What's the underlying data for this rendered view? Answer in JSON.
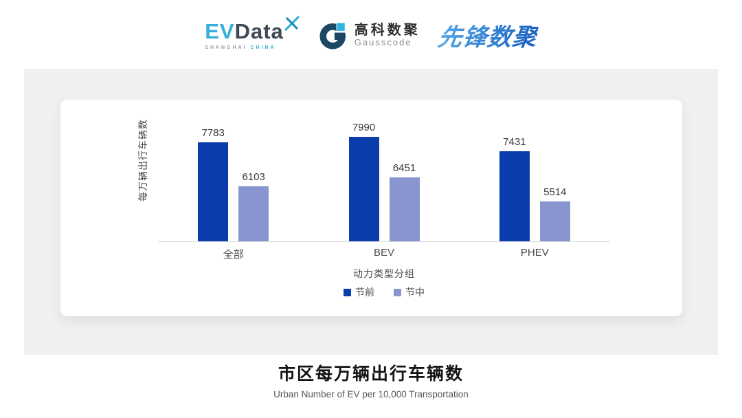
{
  "header": {
    "evdata": {
      "ev": "EV",
      "data": "Data",
      "shanghai": "SHANGHAI",
      "china": "CHINA"
    },
    "gausscode": {
      "name_cn": "高科数聚",
      "name_en": "Gausscode"
    },
    "pioneer": {
      "name": "先锋数聚"
    }
  },
  "chart_data": {
    "type": "bar",
    "categories": [
      "全部",
      "BEV",
      "PHEV"
    ],
    "series": [
      {
        "name": "节前",
        "color": "#0A3DAB",
        "values": [
          7783,
          7990,
          7431
        ]
      },
      {
        "name": "节中",
        "color": "#8895CF",
        "values": [
          6103,
          6451,
          5514
        ]
      }
    ],
    "title": "市区每万辆出行车辆数",
    "xlabel": "动力类型分组",
    "ylabel": "每万辆出行车辆数",
    "ylim": [
      4000,
      8200
    ],
    "grid": false,
    "legend_position": "bottom",
    "value_labels": true
  },
  "footer": {
    "title": "市区每万辆出行车辆数",
    "subtitle": "Urban Number of EV per 10,000 Transportation"
  },
  "colors": {
    "pre_holiday_bar": "#0A3DAB",
    "mid_holiday_bar": "#8895CF",
    "panel_bg": "#F0F0F1",
    "axis_line": "#DCDCDC",
    "evdata_blue": "#35AEDC",
    "evdata_dark": "#3D4A56",
    "gauss_dark": "#1C4866",
    "gauss_light": "#2FB3E3",
    "pioneer_blue": "#2A7CCE"
  }
}
